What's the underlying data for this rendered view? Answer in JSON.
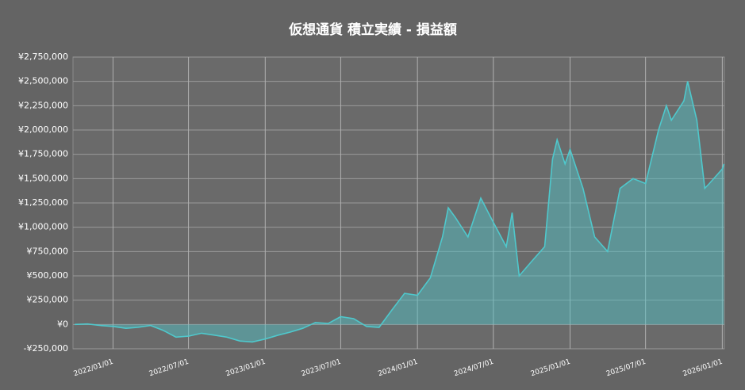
{
  "chart_data": {
    "type": "area",
    "title": "仮想通貨 積立実績 - 損益額",
    "color": "#4fc8cc",
    "grid": true,
    "x": [
      "2021/10/01",
      "2021/11/01",
      "2021/12/01",
      "2022/01/01",
      "2022/02/01",
      "2022/03/01",
      "2022/04/01",
      "2022/05/01",
      "2022/06/01",
      "2022/07/01",
      "2022/08/01",
      "2022/09/01",
      "2022/10/01",
      "2022/11/01",
      "2022/12/01",
      "2023/01/01",
      "2023/02/01",
      "2023/03/01",
      "2023/04/01",
      "2023/05/01",
      "2023/06/01",
      "2023/07/01",
      "2023/08/01",
      "2023/09/01",
      "2023/10/01",
      "2023/11/01",
      "2023/12/01",
      "2024/01/01",
      "2024/02/01",
      "2024/03/01",
      "2024/03/15",
      "2024/04/01",
      "2024/05/01",
      "2024/06/01",
      "2024/07/01",
      "2024/08/01",
      "2024/08/15",
      "2024/09/01",
      "2024/10/01",
      "2024/11/01",
      "2024/11/20",
      "2024/12/01",
      "2024/12/20",
      "2025/01/01",
      "2025/02/01",
      "2025/03/01",
      "2025/04/01",
      "2025/05/01",
      "2025/06/01",
      "2025/07/01",
      "2025/08/01",
      "2025/08/20",
      "2025/09/01",
      "2025/10/01",
      "2025/10/10",
      "2025/11/01",
      "2025/11/20",
      "2025/12/01",
      "2026/01/01",
      "2026/01/05"
    ],
    "values": [
      0,
      5000,
      -10000,
      -20000,
      -40000,
      -30000,
      -10000,
      -60000,
      -130000,
      -120000,
      -90000,
      -110000,
      -130000,
      -170000,
      -180000,
      -150000,
      -110000,
      -80000,
      -40000,
      20000,
      10000,
      80000,
      60000,
      -20000,
      -30000,
      150000,
      320000,
      300000,
      480000,
      900000,
      1200000,
      1100000,
      900000,
      1300000,
      1050000,
      800000,
      1150000,
      500000,
      650000,
      800000,
      1700000,
      1900000,
      1650000,
      1800000,
      1400000,
      900000,
      750000,
      1400000,
      1500000,
      1450000,
      2000000,
      2250000,
      2100000,
      2300000,
      2500000,
      2100000,
      1400000,
      1450000,
      1600000,
      1650000
    ],
    "xlim": [
      "2021/09/27",
      "2026/01/06"
    ],
    "xticks": [
      "2022/01/01",
      "2022/07/01",
      "2023/01/01",
      "2023/07/01",
      "2024/01/01",
      "2024/07/01",
      "2025/01/01",
      "2025/07/01",
      "2026/01/01"
    ],
    "ylim": [
      -250000,
      2750000
    ],
    "yticks": [
      {
        "value": -250000,
        "label": "-¥250,000"
      },
      {
        "value": 0,
        "label": "¥0"
      },
      {
        "value": 250000,
        "label": "¥250,000"
      },
      {
        "value": 500000,
        "label": "¥500,000"
      },
      {
        "value": 750000,
        "label": "¥750,000"
      },
      {
        "value": 1000000,
        "label": "¥1,000,000"
      },
      {
        "value": 1250000,
        "label": "¥1,250,000"
      },
      {
        "value": 1500000,
        "label": "¥1,500,000"
      },
      {
        "value": 1750000,
        "label": "¥1,750,000"
      },
      {
        "value": 2000000,
        "label": "¥2,000,000"
      },
      {
        "value": 2250000,
        "label": "¥2,250,000"
      },
      {
        "value": 2500000,
        "label": "¥2,500,000"
      },
      {
        "value": 2750000,
        "label": "¥2,750,000"
      }
    ]
  }
}
